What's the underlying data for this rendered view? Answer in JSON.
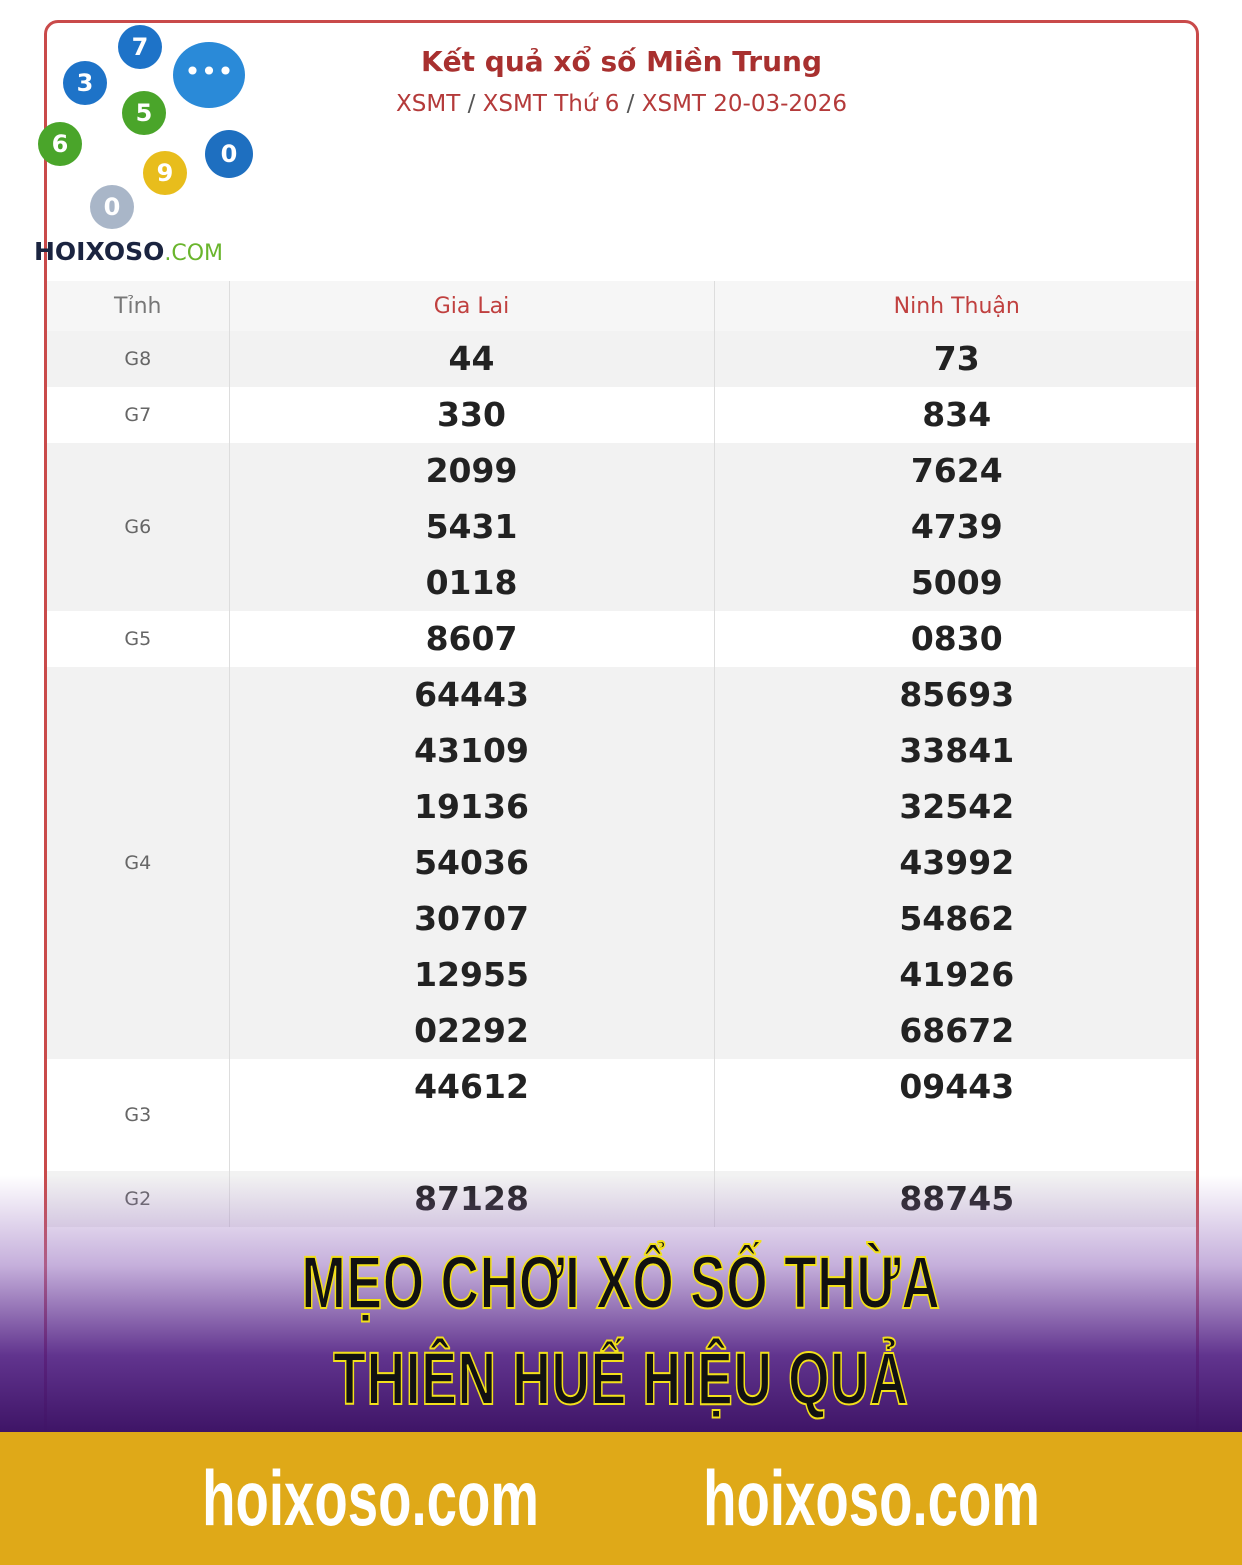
{
  "header": {
    "title": "Kết quả xổ số Miền Trung",
    "breadcrumb": [
      "XSMT",
      "XSMT Thứ 6",
      "XSMT 20-03-2026"
    ]
  },
  "table": {
    "columns": [
      "Tỉnh",
      "Gia Lai",
      "Ninh Thuận"
    ],
    "rows": [
      {
        "prize": "G8",
        "gia_lai": [
          "44"
        ],
        "ninh_thuan": [
          "73"
        ]
      },
      {
        "prize": "G7",
        "gia_lai": [
          "330"
        ],
        "ninh_thuan": [
          "834"
        ]
      },
      {
        "prize": "G6",
        "gia_lai": [
          "2099",
          "5431",
          "0118"
        ],
        "ninh_thuan": [
          "7624",
          "4739",
          "5009"
        ]
      },
      {
        "prize": "G5",
        "gia_lai": [
          "8607"
        ],
        "ninh_thuan": [
          "0830"
        ]
      },
      {
        "prize": "G4",
        "gia_lai": [
          "64443",
          "43109",
          "19136",
          "54036",
          "30707",
          "12955",
          "02292"
        ],
        "ninh_thuan": [
          "85693",
          "33841",
          "32542",
          "43992",
          "54862",
          "41926",
          "68672"
        ]
      },
      {
        "prize": "G3",
        "gia_lai": [
          "44612",
          ""
        ],
        "ninh_thuan": [
          "09443",
          ""
        ]
      },
      {
        "prize": "G2",
        "gia_lai": [
          "87128"
        ],
        "ninh_thuan": [
          "88745"
        ]
      }
    ]
  },
  "logo": {
    "text": "HOIXOSO",
    "suffix": ".COM",
    "balls": [
      "7",
      "3",
      "5",
      "6",
      "9",
      "0",
      "0"
    ]
  },
  "headline": "MẸO CHƠI XỔ SỐ THỪA THIÊN HUẾ HIỆU QUẢ",
  "footer": {
    "links": [
      "hoixoso.com",
      "hoixoso.com"
    ]
  },
  "colors": {
    "accent": "#a8302f",
    "overlay": "#3e1466",
    "footer": "#dfa918"
  }
}
